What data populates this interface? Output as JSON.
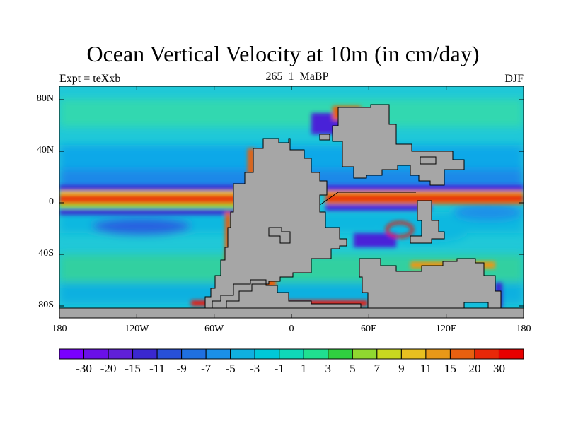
{
  "title": "Ocean Vertical Velocity at 10m (in cm/day)",
  "left_subtitle": "Expt = teXxb",
  "center_subtitle": "265_1_MaBP",
  "right_subtitle": "DJF",
  "lat_labels": [
    "80N",
    "40N",
    "0",
    "40S",
    "80S"
  ],
  "lon_labels": [
    "180",
    "120W",
    "60W",
    "0",
    "60E",
    "120E",
    "180"
  ],
  "colorbar": {
    "labels": [
      "-30",
      "-20",
      "-15",
      "-11",
      "-9",
      "-7",
      "-5",
      "-3",
      "-1",
      "1",
      "3",
      "5",
      "7",
      "9",
      "11",
      "15",
      "20",
      "30"
    ],
    "colors": [
      "#7a00ff",
      "#6a10e8",
      "#6020d8",
      "#3a28d0",
      "#2850d8",
      "#1f70e0",
      "#1a90e8",
      "#10b0e0",
      "#00c8d8",
      "#10d8b8",
      "#20e090",
      "#30d040",
      "#90d830",
      "#c8d820",
      "#e8c020",
      "#e89818",
      "#e86010",
      "#e82808",
      "#e80000"
    ]
  },
  "colors": {
    "land": "#a6a6a6",
    "ocean_background": "#20c8d8",
    "upwelling": "#e8180a",
    "downwelling": "#4a20d8"
  }
}
